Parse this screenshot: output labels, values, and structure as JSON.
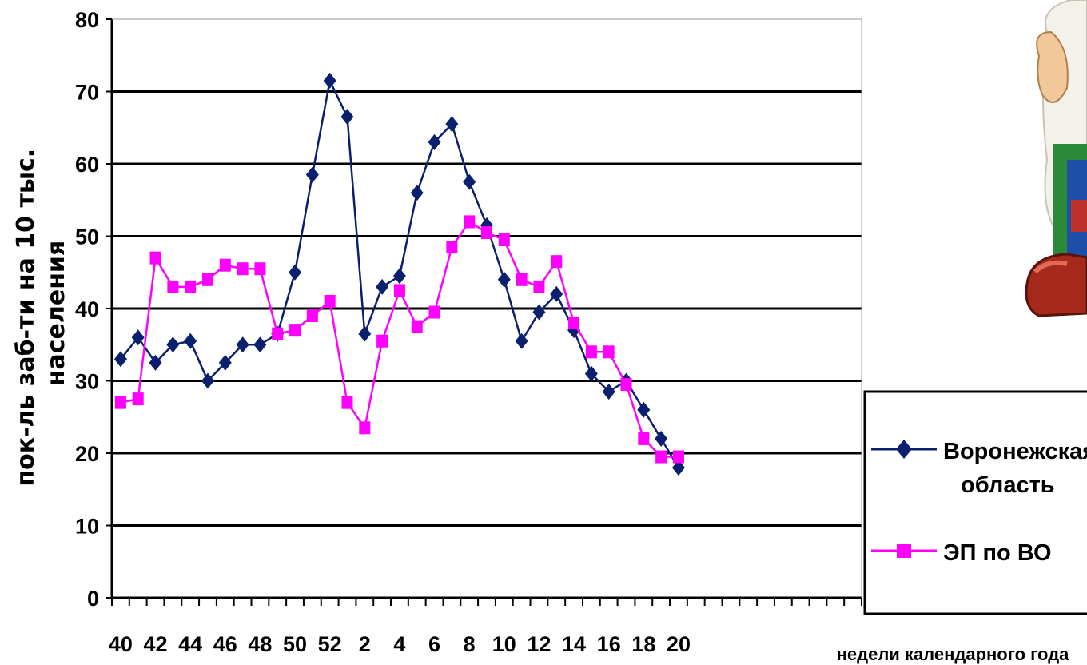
{
  "chart_data": {
    "type": "line",
    "title": "",
    "ylabel": "пок-ль заб-ти на 10 тыс. населения",
    "xlabel": "недели календарного года",
    "ylim": [
      0,
      80
    ],
    "yticks": [
      0,
      10,
      20,
      30,
      40,
      50,
      60,
      70,
      80
    ],
    "x_tick_labels": [
      "40",
      "42",
      "44",
      "46",
      "48",
      "50",
      "52",
      "2",
      "4",
      "6",
      "8",
      "10",
      "12",
      "14",
      "16",
      "18",
      "20"
    ],
    "x": [
      "40",
      "41",
      "42",
      "43",
      "44",
      "45",
      "46",
      "47",
      "48",
      "49",
      "50",
      "51",
      "52",
      "1",
      "2",
      "3",
      "4",
      "5",
      "6",
      "7",
      "8",
      "9",
      "10",
      "11",
      "12",
      "13",
      "14",
      "15",
      "16",
      "17",
      "18",
      "19",
      "20"
    ],
    "grid": true,
    "legend_position": "right",
    "series": [
      {
        "name": "Воронежская область",
        "color": "#0a1f6e",
        "marker": "diamond",
        "values": [
          33,
          36,
          32.5,
          35,
          35.5,
          30,
          32.5,
          35,
          35,
          36.5,
          45,
          58.5,
          71.5,
          66.5,
          36.5,
          43,
          44.5,
          56,
          63,
          65.5,
          57.5,
          51.5,
          44,
          35.5,
          39.5,
          42,
          37,
          31,
          28.5,
          30,
          26,
          22,
          18
        ]
      },
      {
        "name": "ЭП по ВО",
        "color": "#ff00ff",
        "marker": "square",
        "values": [
          27,
          27.5,
          47,
          43,
          43,
          44,
          46,
          45.5,
          45.5,
          36.5,
          37,
          39,
          41,
          27,
          23.5,
          35.5,
          42.5,
          37.5,
          39.5,
          48.5,
          52,
          50.5,
          49.5,
          44,
          43,
          46.5,
          38,
          34,
          34,
          29.5,
          22,
          19.5,
          19.5
        ]
      }
    ]
  },
  "legend": {
    "series1_line1": "Воронежская",
    "series1_line2": "область",
    "series2": "ЭП по ВО"
  },
  "mascot": {
    "icon": "cartoon-character-icon"
  }
}
